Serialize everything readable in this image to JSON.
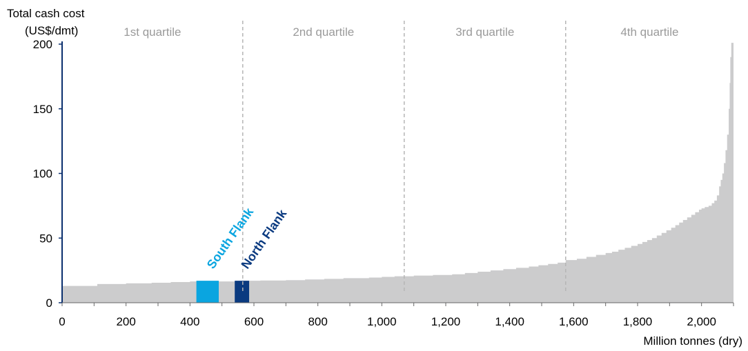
{
  "chart_data": {
    "type": "area",
    "subtype": "cost-curve",
    "ylabel_line1": "Total cash cost",
    "ylabel_line2": "(US$/dmt)",
    "xlabel": "Million  tonnes (dry)",
    "xlim": [
      0,
      2100
    ],
    "ylim": [
      0,
      200
    ],
    "x_ticks": [
      0,
      200,
      400,
      600,
      800,
      1000,
      1200,
      1400,
      1600,
      1800,
      2000
    ],
    "x_tick_labels": [
      "0",
      "200",
      "400",
      "600",
      "800",
      "1,000",
      "1,200",
      "1,400",
      "1,600",
      "1,800",
      "2,000"
    ],
    "y_ticks": [
      0,
      50,
      100,
      150,
      200
    ],
    "y_tick_labels": [
      "0",
      "50",
      "100",
      "150",
      "200"
    ],
    "quartiles": {
      "boundaries": [
        565,
        1070,
        1575
      ],
      "labels": [
        "1st quartile",
        "2nd quartile",
        "3rd quartile",
        "4th quartile"
      ],
      "label_x": [
        110,
        345,
        1350,
        1840
      ]
    },
    "curve_color": "#cccccd",
    "curve": [
      [
        0,
        13
      ],
      [
        100,
        13
      ],
      [
        110,
        14.5
      ],
      [
        200,
        15
      ],
      [
        280,
        15.5
      ],
      [
        340,
        16
      ],
      [
        400,
        16.5
      ],
      [
        565,
        17
      ],
      [
        620,
        17.2
      ],
      [
        700,
        17.5
      ],
      [
        760,
        18
      ],
      [
        820,
        18.5
      ],
      [
        880,
        19
      ],
      [
        960,
        19.5
      ],
      [
        1000,
        20
      ],
      [
        1040,
        20.5
      ],
      [
        1100,
        21
      ],
      [
        1160,
        21.5
      ],
      [
        1220,
        22
      ],
      [
        1260,
        23
      ],
      [
        1300,
        24
      ],
      [
        1340,
        25
      ],
      [
        1380,
        26
      ],
      [
        1420,
        27
      ],
      [
        1460,
        28
      ],
      [
        1490,
        29
      ],
      [
        1520,
        30
      ],
      [
        1550,
        31
      ],
      [
        1575,
        33
      ],
      [
        1610,
        34
      ],
      [
        1640,
        35.5
      ],
      [
        1670,
        37
      ],
      [
        1700,
        38.5
      ],
      [
        1720,
        39.5
      ],
      [
        1740,
        41
      ],
      [
        1760,
        42.5
      ],
      [
        1780,
        44
      ],
      [
        1800,
        45.5
      ],
      [
        1815,
        47
      ],
      [
        1830,
        48.5
      ],
      [
        1845,
        50
      ],
      [
        1860,
        52
      ],
      [
        1875,
        54
      ],
      [
        1890,
        56
      ],
      [
        1905,
        58
      ],
      [
        1918,
        60
      ],
      [
        1930,
        62
      ],
      [
        1942,
        64
      ],
      [
        1955,
        66
      ],
      [
        1968,
        68
      ],
      [
        1980,
        70
      ],
      [
        1992,
        72
      ],
      [
        2000,
        73
      ],
      [
        2010,
        74
      ],
      [
        2022,
        75
      ],
      [
        2032,
        77
      ],
      [
        2040,
        79
      ],
      [
        2048,
        83
      ],
      [
        2055,
        90
      ],
      [
        2060,
        95
      ],
      [
        2065,
        100
      ],
      [
        2070,
        108
      ],
      [
        2075,
        118
      ],
      [
        2080,
        130
      ],
      [
        2085,
        150
      ],
      [
        2088,
        170
      ],
      [
        2090,
        190
      ],
      [
        2093,
        201
      ],
      [
        2100,
        201
      ]
    ],
    "highlights": [
      {
        "name": "South Flank",
        "x_start": 420,
        "x_end": 490,
        "value": 17,
        "color": "#0aa5e0"
      },
      {
        "name": "North Flank",
        "x_start": 540,
        "x_end": 585,
        "value": 17,
        "color": "#0a3a80"
      }
    ]
  }
}
